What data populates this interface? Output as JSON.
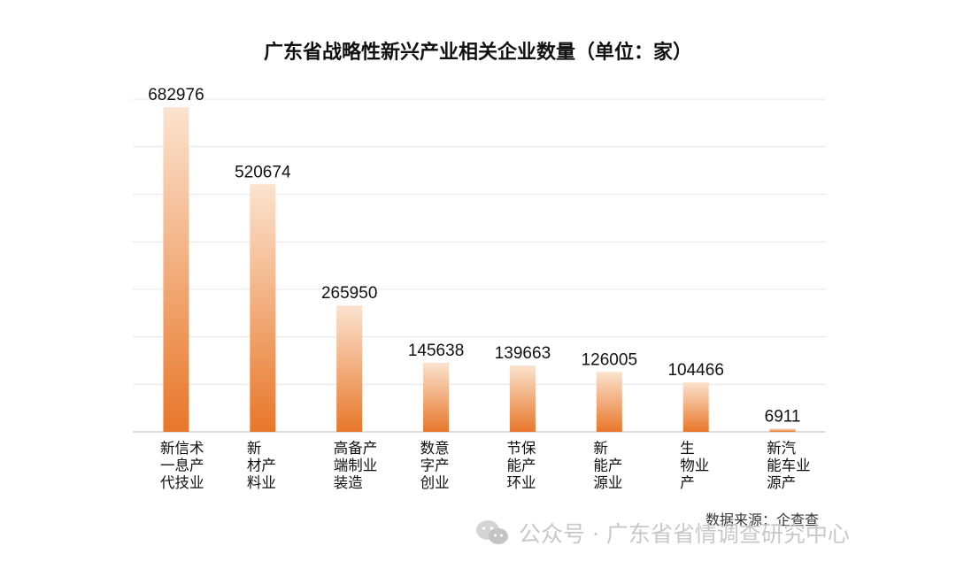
{
  "chart_data": {
    "type": "bar",
    "title": "广东省战略性新兴产业相关企业数量（单位：家）",
    "categories": [
      [
        "新信术",
        "一息产",
        "代技业"
      ],
      [
        "新",
        "材产",
        "料业"
      ],
      [
        "高备产",
        "端制业",
        "装造"
      ],
      [
        "数意",
        "字产",
        "创业"
      ],
      [
        "节保",
        "能产",
        "环业"
      ],
      [
        "新",
        "能产",
        "源业"
      ],
      [
        "生",
        "物业",
        "产"
      ],
      [
        "新汽",
        "能车业",
        "源产"
      ]
    ],
    "values": [
      682976,
      520674,
      265950,
      145638,
      139663,
      126005,
      104466,
      6911
    ],
    "value_labels": [
      "682976",
      "520674",
      "265950",
      "145638",
      "139663",
      "126005",
      "104466",
      "6911"
    ],
    "ylim": [
      0,
      700000
    ],
    "grid": true,
    "colors": {
      "bar_top": "#fbe3cf",
      "bar_bottom": "#e8772a",
      "grid": "#e6e6e6",
      "axis": "#bdbdbd",
      "text": "#111111"
    }
  },
  "source": "数据来源：企查查",
  "watermark": {
    "icon": "wechat-icon",
    "text": "公众号 · 广东省省情调查研究中心"
  }
}
